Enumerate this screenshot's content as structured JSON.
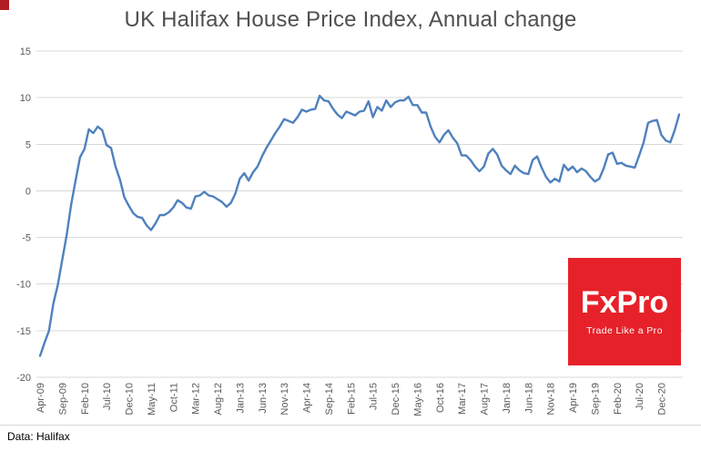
{
  "chart": {
    "title": "UK Halifax House Price Index, Annual change",
    "source_note": "Data: Halifax",
    "line_color": "#4f81bd",
    "grid_color": "#d9d9d9",
    "text_color": "#595959",
    "y_ticks": [
      15,
      10,
      5,
      0,
      -5,
      -10,
      -15,
      -20
    ],
    "x_tick_labels": [
      "Apr-09",
      "Sep-09",
      "Feb-10",
      "Jul-10",
      "Dec-10",
      "May-11",
      "Oct-11",
      "Mar-12",
      "Aug-12",
      "Jan-13",
      "Jun-13",
      "Nov-13",
      "Apr-14",
      "Sep-14",
      "Feb-15",
      "Jul-15",
      "Dec-15",
      "May-16",
      "Oct-16",
      "Mar-17",
      "Aug-17",
      "Jan-18",
      "Jun-18",
      "Nov-18",
      "Apr-19",
      "Sep-19",
      "Feb-20",
      "Jul-20",
      "Dec-20"
    ],
    "x_tick_every_months": 5
  },
  "chart_data": {
    "type": "line",
    "title": "UK Halifax House Price Index, Annual change",
    "xlabel": "",
    "ylabel": "",
    "ylim": [
      -20,
      15
    ],
    "grid": true,
    "legend": false,
    "x": [
      "Apr-09",
      "May-09",
      "Jun-09",
      "Jul-09",
      "Aug-09",
      "Sep-09",
      "Oct-09",
      "Nov-09",
      "Dec-09",
      "Jan-10",
      "Feb-10",
      "Mar-10",
      "Apr-10",
      "May-10",
      "Jun-10",
      "Jul-10",
      "Aug-10",
      "Sep-10",
      "Oct-10",
      "Nov-10",
      "Dec-10",
      "Jan-11",
      "Feb-11",
      "Mar-11",
      "Apr-11",
      "May-11",
      "Jun-11",
      "Jul-11",
      "Aug-11",
      "Sep-11",
      "Oct-11",
      "Nov-11",
      "Dec-11",
      "Jan-12",
      "Feb-12",
      "Mar-12",
      "Apr-12",
      "May-12",
      "Jun-12",
      "Jul-12",
      "Aug-12",
      "Sep-12",
      "Oct-12",
      "Nov-12",
      "Dec-12",
      "Jan-13",
      "Feb-13",
      "Mar-13",
      "Apr-13",
      "May-13",
      "Jun-13",
      "Jul-13",
      "Aug-13",
      "Sep-13",
      "Oct-13",
      "Nov-13",
      "Dec-13",
      "Jan-14",
      "Feb-14",
      "Mar-14",
      "Apr-14",
      "May-14",
      "Jun-14",
      "Jul-14",
      "Aug-14",
      "Sep-14",
      "Oct-14",
      "Nov-14",
      "Dec-14",
      "Jan-15",
      "Feb-15",
      "Mar-15",
      "Apr-15",
      "May-15",
      "Jun-15",
      "Jul-15",
      "Aug-15",
      "Sep-15",
      "Oct-15",
      "Nov-15",
      "Dec-15",
      "Jan-16",
      "Feb-16",
      "Mar-16",
      "Apr-16",
      "May-16",
      "Jun-16",
      "Jul-16",
      "Aug-16",
      "Sep-16",
      "Oct-16",
      "Nov-16",
      "Dec-16",
      "Jan-17",
      "Feb-17",
      "Mar-17",
      "Apr-17",
      "May-17",
      "Jun-17",
      "Jul-17",
      "Aug-17",
      "Sep-17",
      "Oct-17",
      "Nov-17",
      "Dec-17",
      "Jan-18",
      "Feb-18",
      "Mar-18",
      "Apr-18",
      "May-18",
      "Jun-18",
      "Jul-18",
      "Aug-18",
      "Sep-18",
      "Oct-18",
      "Nov-18",
      "Dec-18",
      "Jan-19",
      "Feb-19",
      "Mar-19",
      "Apr-19",
      "May-19",
      "Jun-19",
      "Jul-19",
      "Aug-19",
      "Sep-19",
      "Oct-19",
      "Nov-19",
      "Dec-19",
      "Jan-20",
      "Feb-20",
      "Mar-20",
      "Apr-20",
      "May-20",
      "Jun-20",
      "Jul-20",
      "Aug-20",
      "Sep-20",
      "Oct-20",
      "Nov-20",
      "Dec-20",
      "Jan-21",
      "Feb-21",
      "Mar-21",
      "Apr-21"
    ],
    "values": [
      -17.7,
      -16.3,
      -15.0,
      -12.1,
      -10.1,
      -7.4,
      -4.7,
      -1.5,
      1.1,
      3.6,
      4.5,
      6.6,
      6.2,
      6.9,
      6.5,
      4.9,
      4.6,
      2.6,
      1.2,
      -0.7,
      -1.6,
      -2.4,
      -2.8,
      -2.9,
      -3.7,
      -4.2,
      -3.5,
      -2.6,
      -2.6,
      -2.3,
      -1.8,
      -1.0,
      -1.3,
      -1.8,
      -1.9,
      -0.6,
      -0.5,
      -0.1,
      -0.5,
      -0.6,
      -0.9,
      -1.2,
      -1.7,
      -1.3,
      -0.3,
      1.3,
      1.9,
      1.1,
      2.0,
      2.6,
      3.7,
      4.6,
      5.4,
      6.2,
      6.9,
      7.7,
      7.5,
      7.3,
      7.9,
      8.7,
      8.5,
      8.7,
      8.8,
      10.2,
      9.7,
      9.6,
      8.8,
      8.2,
      7.8,
      8.5,
      8.3,
      8.1,
      8.5,
      8.6,
      9.6,
      7.9,
      9.0,
      8.6,
      9.7,
      9.0,
      9.5,
      9.7,
      9.7,
      10.1,
      9.2,
      9.2,
      8.4,
      8.4,
      6.9,
      5.8,
      5.2,
      6.0,
      6.5,
      5.7,
      5.1,
      3.8,
      3.8,
      3.3,
      2.6,
      2.1,
      2.6,
      4.0,
      4.5,
      3.9,
      2.7,
      2.2,
      1.8,
      2.7,
      2.2,
      1.9,
      1.8,
      3.3,
      3.7,
      2.5,
      1.5,
      0.9,
      1.3,
      1.0,
      2.8,
      2.2,
      2.6,
      2.0,
      2.4,
      2.1,
      1.5,
      1.0,
      1.3,
      2.4,
      3.9,
      4.1,
      2.9,
      3.0,
      2.7,
      2.6,
      2.5,
      3.8,
      5.2,
      7.3,
      7.5,
      7.6,
      6.0,
      5.4,
      5.2,
      6.5,
      8.2
    ]
  },
  "logo": {
    "text": "FxPro",
    "tagline": "Trade Like a Pro",
    "bg": "#e62129",
    "fg": "#ffffff"
  }
}
